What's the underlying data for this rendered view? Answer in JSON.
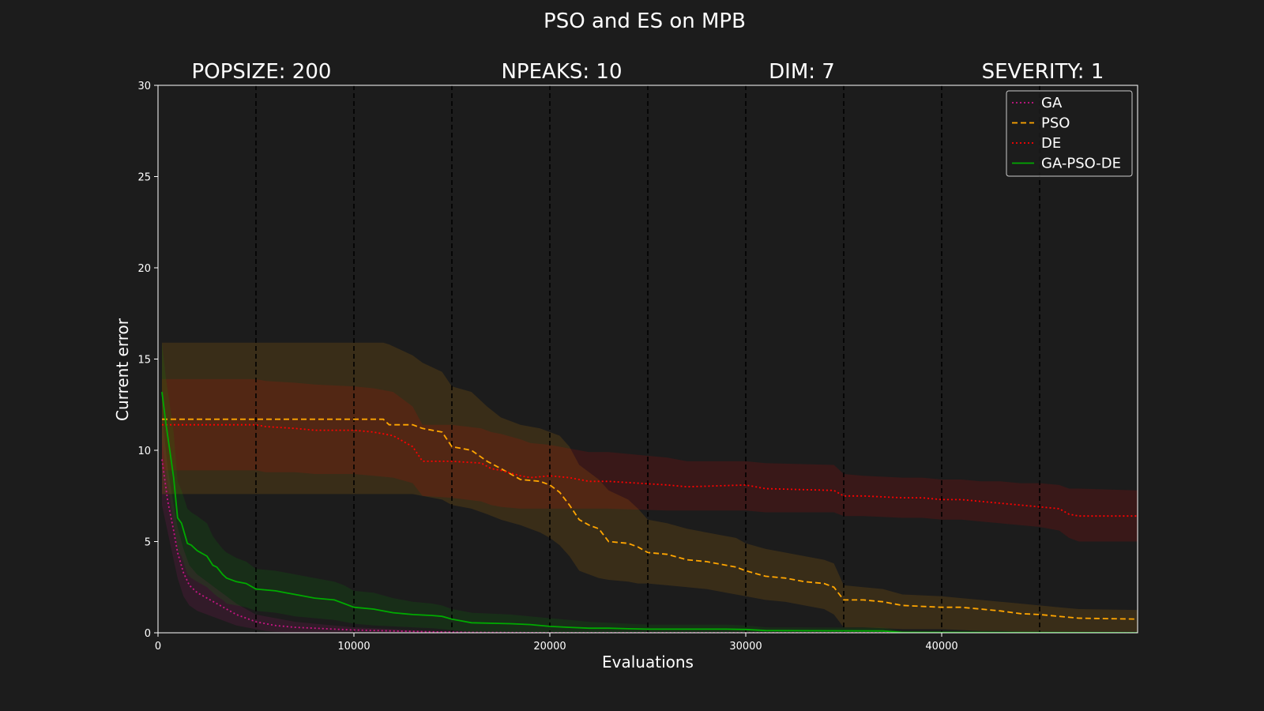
{
  "chart_data": {
    "type": "line",
    "title": "PSO and ES on MPB",
    "subtitles": [
      "POPSIZE: 200",
      "NPEAKS: 10",
      "DIM: 7",
      "SEVERITY: 1"
    ],
    "xlabel": "Evaluations",
    "ylabel": "Current error",
    "xlim": [
      0,
      50000
    ],
    "ylim": [
      0,
      30
    ],
    "xticks": [
      0,
      10000,
      20000,
      30000,
      40000
    ],
    "yticks": [
      0,
      5,
      10,
      15,
      20,
      25,
      30
    ],
    "change_points": [
      5000,
      10000,
      15000,
      20000,
      25000,
      30000,
      35000,
      40000,
      45000
    ],
    "grid": false,
    "legend_position": "top-right",
    "series": [
      {
        "name": "GA",
        "color": "#c71585",
        "style": "dotted",
        "x": [
          200,
          500,
          800,
          1000,
          1300,
          1600,
          2000,
          2500,
          3000,
          3500,
          4000,
          4500,
          5000,
          5500,
          6000,
          7000,
          8000,
          9000,
          10000,
          12000,
          14000,
          16000,
          20000,
          30000,
          40000,
          50000
        ],
        "mean": [
          9.5,
          7.2,
          5.6,
          4.4,
          3.3,
          2.6,
          2.2,
          1.9,
          1.6,
          1.3,
          1.0,
          0.8,
          0.6,
          0.5,
          0.4,
          0.3,
          0.25,
          0.2,
          0.15,
          0.1,
          0.05,
          0.02,
          0.0,
          0.0,
          0.0,
          0.0
        ],
        "lower": [
          7.0,
          5.5,
          4.0,
          3.0,
          2.0,
          1.5,
          1.2,
          1.0,
          0.8,
          0.6,
          0.4,
          0.3,
          0.2,
          0.1,
          0.05,
          0.0,
          0.0,
          0.0,
          0.0,
          0.0,
          0.0,
          0.0,
          0.0,
          0.0,
          0.0,
          0.0
        ],
        "upper": [
          12.0,
          9.0,
          7.0,
          5.8,
          4.6,
          3.7,
          3.2,
          2.8,
          2.4,
          2.0,
          1.6,
          1.3,
          1.0,
          0.9,
          0.8,
          0.6,
          0.5,
          0.4,
          0.3,
          0.2,
          0.1,
          0.05,
          0.0,
          0.0,
          0.0,
          0.0
        ]
      },
      {
        "name": "PSO",
        "color": "#ffa500",
        "style": "dashed",
        "x": [
          200,
          11500,
          11800,
          13000,
          13500,
          14500,
          15000,
          16000,
          16800,
          17500,
          18500,
          19500,
          20000,
          20500,
          21000,
          21500,
          22000,
          22500,
          23000,
          24000,
          24500,
          25000,
          26000,
          27000,
          28000,
          29000,
          29500,
          30000,
          31000,
          32000,
          33000,
          34000,
          34500,
          35000,
          36000,
          37000,
          38000,
          40000,
          41000,
          42000,
          43000,
          44000,
          45000,
          46000,
          47000,
          50000
        ],
        "mean": [
          11.7,
          11.7,
          11.4,
          11.4,
          11.2,
          11.0,
          10.2,
          10.0,
          9.4,
          9.0,
          8.4,
          8.3,
          8.1,
          7.7,
          7.0,
          6.2,
          5.9,
          5.7,
          5.0,
          4.9,
          4.7,
          4.4,
          4.3,
          4.0,
          3.9,
          3.7,
          3.6,
          3.4,
          3.1,
          3.0,
          2.8,
          2.7,
          2.5,
          1.8,
          1.8,
          1.7,
          1.5,
          1.4,
          1.4,
          1.3,
          1.2,
          1.05,
          1.0,
          0.9,
          0.8,
          0.75
        ],
        "lower": [
          7.6,
          7.6,
          7.6,
          7.6,
          7.5,
          7.3,
          7.0,
          6.8,
          6.5,
          6.2,
          5.9,
          5.5,
          5.2,
          4.8,
          4.2,
          3.4,
          3.2,
          3.0,
          2.9,
          2.8,
          2.7,
          2.7,
          2.6,
          2.5,
          2.4,
          2.2,
          2.1,
          2.0,
          1.8,
          1.7,
          1.5,
          1.3,
          1.0,
          0.3,
          0.3,
          0.25,
          0.2,
          0.2,
          0.15,
          0.1,
          0.1,
          0.05,
          0.05,
          0.05,
          0.05,
          0.05
        ],
        "upper": [
          15.9,
          15.9,
          15.8,
          15.2,
          14.8,
          14.3,
          13.5,
          13.2,
          12.4,
          11.8,
          11.4,
          11.2,
          11.0,
          10.8,
          10.2,
          9.2,
          8.8,
          8.4,
          7.8,
          7.3,
          6.8,
          6.2,
          6.0,
          5.7,
          5.5,
          5.3,
          5.2,
          4.9,
          4.6,
          4.4,
          4.2,
          4.0,
          3.8,
          2.6,
          2.5,
          2.4,
          2.1,
          2.0,
          1.9,
          1.8,
          1.7,
          1.6,
          1.5,
          1.4,
          1.3,
          1.25
        ]
      },
      {
        "name": "DE",
        "color": "#ff0000",
        "style": "dotted",
        "x": [
          200,
          5000,
          5500,
          7000,
          8000,
          10000,
          11000,
          12000,
          13000,
          13500,
          15000,
          16500,
          17000,
          17500,
          18500,
          19000,
          20000,
          21000,
          22000,
          23000,
          26000,
          27000,
          30000,
          31000,
          34500,
          35000,
          36000,
          38000,
          39000,
          40000,
          41000,
          42000,
          43000,
          44000,
          45000,
          46000,
          46500,
          47000,
          50000
        ],
        "mean": [
          11.4,
          11.4,
          11.3,
          11.2,
          11.1,
          11.1,
          11.0,
          10.8,
          10.2,
          9.4,
          9.4,
          9.3,
          9.0,
          8.9,
          8.6,
          8.5,
          8.6,
          8.5,
          8.3,
          8.3,
          8.1,
          8.0,
          8.1,
          7.9,
          7.8,
          7.5,
          7.5,
          7.4,
          7.4,
          7.3,
          7.3,
          7.2,
          7.1,
          7.0,
          6.9,
          6.8,
          6.5,
          6.4,
          6.4
        ],
        "lower": [
          8.9,
          8.9,
          8.8,
          8.8,
          8.7,
          8.7,
          8.6,
          8.5,
          8.2,
          7.5,
          7.4,
          7.2,
          7.0,
          6.9,
          6.8,
          6.8,
          6.8,
          6.8,
          6.8,
          6.8,
          6.7,
          6.7,
          6.7,
          6.6,
          6.6,
          6.4,
          6.4,
          6.3,
          6.3,
          6.2,
          6.2,
          6.1,
          6.0,
          5.9,
          5.8,
          5.6,
          5.2,
          5.0,
          5.0
        ],
        "upper": [
          13.9,
          13.9,
          13.8,
          13.7,
          13.6,
          13.5,
          13.4,
          13.2,
          12.4,
          11.4,
          11.4,
          11.2,
          11.0,
          10.9,
          10.6,
          10.4,
          10.3,
          10.1,
          9.9,
          9.9,
          9.6,
          9.4,
          9.4,
          9.3,
          9.2,
          8.7,
          8.6,
          8.5,
          8.5,
          8.4,
          8.4,
          8.3,
          8.3,
          8.2,
          8.2,
          8.1,
          7.9,
          7.9,
          7.8
        ]
      },
      {
        "name": "GA-PSO-DE",
        "color": "#00aa00",
        "style": "solid",
        "x": [
          200,
          400,
          600,
          800,
          1000,
          1200,
          1500,
          1700,
          2000,
          2500,
          2800,
          3000,
          3300,
          3500,
          4000,
          4500,
          5000,
          6000,
          6500,
          7000,
          8000,
          9000,
          9500,
          10000,
          11000,
          12000,
          13000,
          14000,
          14500,
          15000,
          15500,
          16000,
          18000,
          19000,
          20000,
          21000,
          22000,
          23000,
          24000,
          25000,
          29000,
          30000,
          31000,
          37000,
          38000,
          50000
        ],
        "mean": [
          13.2,
          11.5,
          10.0,
          8.5,
          6.3,
          6.0,
          4.9,
          4.8,
          4.5,
          4.2,
          3.7,
          3.6,
          3.2,
          3.0,
          2.8,
          2.7,
          2.4,
          2.3,
          2.2,
          2.1,
          1.9,
          1.8,
          1.6,
          1.4,
          1.3,
          1.1,
          1.0,
          0.95,
          0.9,
          0.75,
          0.65,
          0.55,
          0.5,
          0.45,
          0.35,
          0.3,
          0.25,
          0.25,
          0.22,
          0.2,
          0.2,
          0.18,
          0.12,
          0.1,
          0.02,
          0.0
        ],
        "lower": [
          10.5,
          9.0,
          7.5,
          6.0,
          4.5,
          4.2,
          3.2,
          3.0,
          2.8,
          2.5,
          2.2,
          2.0,
          1.8,
          1.6,
          1.5,
          1.4,
          1.2,
          1.1,
          1.0,
          0.9,
          0.8,
          0.7,
          0.6,
          0.5,
          0.4,
          0.35,
          0.3,
          0.25,
          0.2,
          0.15,
          0.1,
          0.05,
          0.05,
          0.05,
          0.0,
          0.0,
          0.0,
          0.0,
          0.0,
          0.0,
          0.0,
          0.0,
          0.0,
          0.0,
          0.0,
          0.0
        ],
        "upper": [
          15.9,
          14.0,
          12.5,
          11.0,
          8.3,
          7.8,
          6.8,
          6.6,
          6.4,
          6.0,
          5.3,
          5.0,
          4.6,
          4.4,
          4.1,
          3.9,
          3.5,
          3.4,
          3.3,
          3.2,
          3.0,
          2.8,
          2.6,
          2.3,
          2.2,
          1.9,
          1.7,
          1.6,
          1.5,
          1.3,
          1.2,
          1.1,
          1.0,
          0.9,
          0.8,
          0.7,
          0.6,
          0.55,
          0.5,
          0.45,
          0.45,
          0.4,
          0.3,
          0.28,
          0.1,
          0.05
        ]
      }
    ]
  }
}
